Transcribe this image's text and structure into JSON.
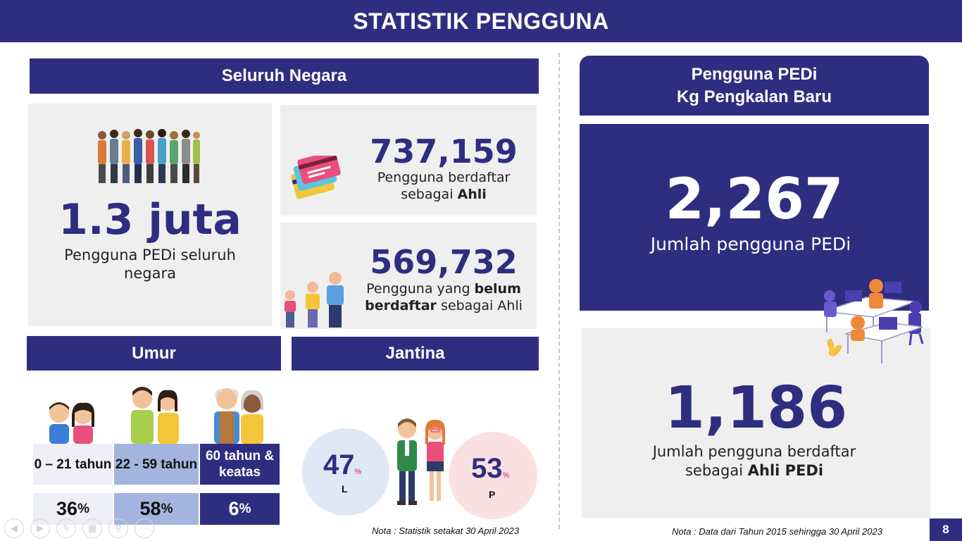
{
  "header": {
    "title": "STATISTIK PENGGUNA"
  },
  "national": {
    "heading": "Seluruh Negara",
    "total": {
      "value": "1.3 juta",
      "label": "Pengguna PEDi seluruh negara"
    },
    "registered": {
      "value": "737,159",
      "label_pre": "Pengguna berdaftar sebagai ",
      "label_bold": "Ahli"
    },
    "unregistered": {
      "value": "569,732",
      "label_pre": "Pengguna yang ",
      "label_bold": "belum berdaftar",
      "label_post": " sebagai Ahli"
    }
  },
  "age": {
    "heading": "Umur",
    "groups": [
      {
        "label": "0 – 21 tahun",
        "pct": "36",
        "unit": "%"
      },
      {
        "label": "22 - 59 tahun",
        "pct": "58",
        "unit": "%"
      },
      {
        "label": "60 tahun & keatas",
        "pct": "6",
        "unit": "%"
      }
    ]
  },
  "gender": {
    "heading": "Jantina",
    "male": {
      "pct": "47",
      "unit": "%",
      "letter": "L"
    },
    "female": {
      "pct": "53",
      "unit": "%",
      "letter": "P"
    }
  },
  "note_left": "Nota : Statistik setakat  30 April 2023",
  "local": {
    "heading_line1": "Pengguna PEDi",
    "heading_line2": "Kg Pengkalan Baru",
    "total": {
      "value": "2,267",
      "label": "Jumlah pengguna PEDi"
    },
    "members": {
      "value": "1,186",
      "label_pre": "Jumlah pengguna berdaftar sebagai ",
      "label_bold": "Ahli PEDi"
    }
  },
  "note_right": "Nota : Data dari Tahun 2015 sehingga 30 April 2023",
  "page_number": "8",
  "colors": {
    "navy": "#2e2e80",
    "grey_panel": "#efefef",
    "age_first": "#eeeef7",
    "age_second": "#a3b5de",
    "male_circle": "#dfe8f5",
    "female_circle": "#fbe0e2"
  },
  "slide_controls": [
    "prev-icon",
    "next-icon",
    "pen-icon",
    "slides-icon",
    "zoom-icon",
    "more-icon"
  ]
}
